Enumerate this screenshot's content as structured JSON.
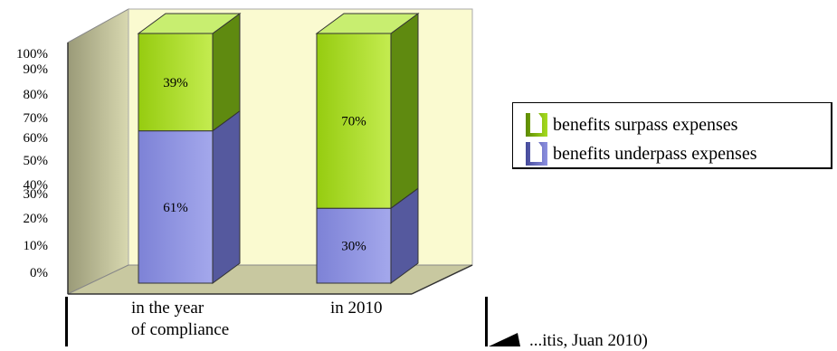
{
  "chart_data": {
    "type": "bar",
    "stacked": true,
    "percent": true,
    "categories": [
      "in the year of compliance",
      "in 2010"
    ],
    "category_lines": [
      [
        "in the year",
        "of compliance"
      ],
      [
        "in 2010"
      ]
    ],
    "series": [
      {
        "name": "benefits underpass expenses",
        "values": [
          61,
          30
        ],
        "labels": [
          "61%",
          "30%"
        ],
        "color": "#8c90e0"
      },
      {
        "name": "benefits surpass expenses",
        "values": [
          39,
          70
        ],
        "labels": [
          "39%",
          "70%"
        ],
        "color": "#a6dc20"
      }
    ],
    "yticks": [
      "100%",
      "90%",
      "80%",
      "70%",
      "60%",
      "50%",
      "40%",
      "30%",
      "20%",
      "10%",
      "0%"
    ],
    "ylim": [
      0,
      100
    ],
    "legend_position": "right",
    "wall_color": "#fafad0",
    "floor_color": "#c8c8a0"
  },
  "footnote": "...itis, Juan 2010)"
}
